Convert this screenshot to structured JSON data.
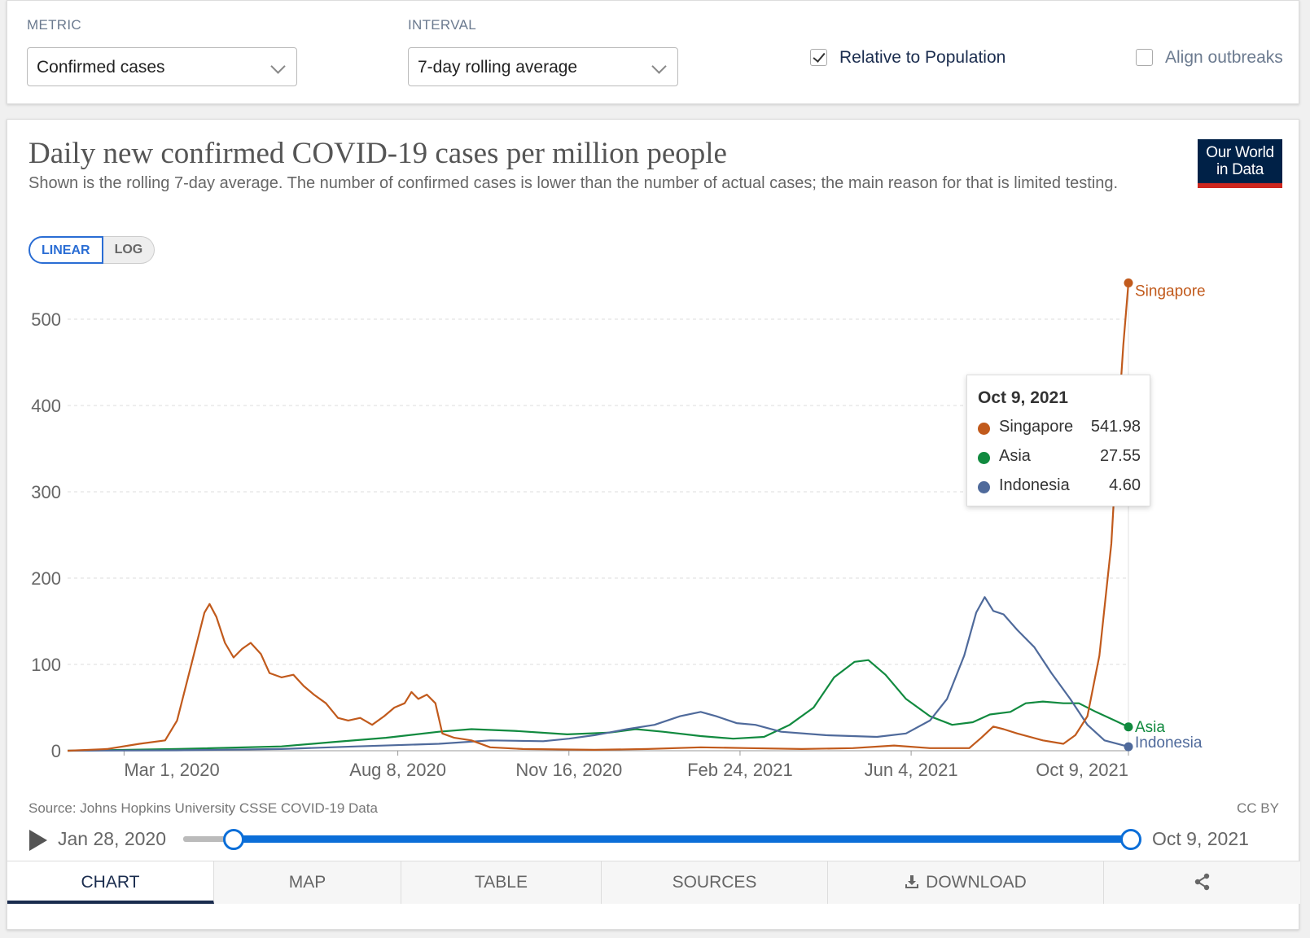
{
  "controls": {
    "metric_label": "METRIC",
    "metric_value": "Confirmed cases",
    "interval_label": "INTERVAL",
    "interval_value": "7-day rolling average",
    "relative_label": "Relative to Population",
    "relative_checked": true,
    "align_label": "Align outbreaks",
    "align_checked": false
  },
  "logo": {
    "line1": "Our World",
    "line2": "in Data"
  },
  "scale": {
    "linear": "LINEAR",
    "log": "LOG",
    "selected": "LINEAR"
  },
  "tooltip": {
    "date": "Oct 9, 2021",
    "rows": [
      {
        "name": "Singapore",
        "value": "541.98",
        "color": "#c15a1c"
      },
      {
        "name": "Asia",
        "value": "27.55",
        "color": "#118a3f"
      },
      {
        "name": "Indonesia",
        "value": "4.60",
        "color": "#4f6a9b"
      }
    ]
  },
  "footer": {
    "source": "Source: Johns Hopkins University CSSE COVID-19 Data",
    "license": "CC BY"
  },
  "timeline": {
    "start": "Jan 28, 2020",
    "end": "Oct 9, 2021"
  },
  "tabs": [
    {
      "label": "CHART",
      "active": true
    },
    {
      "label": "MAP",
      "active": false
    },
    {
      "label": "TABLE",
      "active": false
    },
    {
      "label": "SOURCES",
      "active": false
    },
    {
      "label": "DOWNLOAD",
      "active": false
    }
  ],
  "icons": {
    "play": "play-icon",
    "download": "download-icon",
    "share": "share-icon",
    "chevron": "chevron-down-icon",
    "check": "checkmark-icon"
  },
  "chart_data": {
    "type": "line",
    "title": "Daily new confirmed COVID-19 cases per million people",
    "subtitle": "Shown is the rolling 7-day average. The number of confirmed cases is lower than the number of actual cases; the main reason for that is limited testing.",
    "xlabel": "",
    "ylabel": "",
    "x_range": [
      "2020-01-28",
      "2021-10-09"
    ],
    "ylim": [
      0,
      540
    ],
    "y_ticks": [
      0,
      100,
      200,
      300,
      400,
      500
    ],
    "x_ticks": [
      "Mar 1, 2020",
      "Aug 8, 2020",
      "Nov 16, 2020",
      "Feb 24, 2021",
      "Jun 4, 2021",
      "Oct 9, 2021"
    ],
    "x_tick_dates": [
      "2020-03-01",
      "2020-08-08",
      "2020-11-16",
      "2021-02-24",
      "2021-06-04",
      "2021-10-09"
    ],
    "grid": "horizontal",
    "legend": "end-labels",
    "series": [
      {
        "name": "Singapore",
        "color": "#c15a1c",
        "points": [
          [
            "2020-01-28",
            0
          ],
          [
            "2020-02-20",
            2
          ],
          [
            "2020-03-10",
            8
          ],
          [
            "2020-03-25",
            12
          ],
          [
            "2020-04-01",
            35
          ],
          [
            "2020-04-10",
            105
          ],
          [
            "2020-04-17",
            160
          ],
          [
            "2020-04-20",
            170
          ],
          [
            "2020-04-24",
            155
          ],
          [
            "2020-04-29",
            125
          ],
          [
            "2020-05-04",
            108
          ],
          [
            "2020-05-09",
            118
          ],
          [
            "2020-05-14",
            125
          ],
          [
            "2020-05-20",
            112
          ],
          [
            "2020-05-25",
            90
          ],
          [
            "2020-06-01",
            85
          ],
          [
            "2020-06-08",
            88
          ],
          [
            "2020-06-14",
            75
          ],
          [
            "2020-06-20",
            65
          ],
          [
            "2020-06-27",
            55
          ],
          [
            "2020-07-04",
            38
          ],
          [
            "2020-07-10",
            35
          ],
          [
            "2020-07-17",
            38
          ],
          [
            "2020-07-24",
            30
          ],
          [
            "2020-07-31",
            40
          ],
          [
            "2020-08-06",
            50
          ],
          [
            "2020-08-12",
            55
          ],
          [
            "2020-08-16",
            68
          ],
          [
            "2020-08-20",
            60
          ],
          [
            "2020-08-25",
            65
          ],
          [
            "2020-08-30",
            55
          ],
          [
            "2020-09-03",
            20
          ],
          [
            "2020-09-10",
            15
          ],
          [
            "2020-09-20",
            12
          ],
          [
            "2020-10-01",
            4
          ],
          [
            "2020-10-20",
            2
          ],
          [
            "2020-12-01",
            1
          ],
          [
            "2021-01-01",
            2
          ],
          [
            "2021-02-01",
            4
          ],
          [
            "2021-03-01",
            3
          ],
          [
            "2021-04-01",
            2
          ],
          [
            "2021-05-01",
            3
          ],
          [
            "2021-05-25",
            6
          ],
          [
            "2021-06-15",
            3
          ],
          [
            "2021-07-08",
            3
          ],
          [
            "2021-07-15",
            15
          ],
          [
            "2021-07-22",
            28
          ],
          [
            "2021-07-28",
            25
          ],
          [
            "2021-08-05",
            20
          ],
          [
            "2021-08-20",
            12
          ],
          [
            "2021-09-01",
            8
          ],
          [
            "2021-09-08",
            18
          ],
          [
            "2021-09-15",
            40
          ],
          [
            "2021-09-22",
            110
          ],
          [
            "2021-09-29",
            240
          ],
          [
            "2021-10-03",
            380
          ],
          [
            "2021-10-06",
            470
          ],
          [
            "2021-10-09",
            541.98
          ]
        ]
      },
      {
        "name": "Asia",
        "color": "#118a3f",
        "points": [
          [
            "2020-01-28",
            0
          ],
          [
            "2020-04-01",
            2
          ],
          [
            "2020-06-01",
            5
          ],
          [
            "2020-07-01",
            10
          ],
          [
            "2020-08-01",
            15
          ],
          [
            "2020-09-01",
            22
          ],
          [
            "2020-09-20",
            25
          ],
          [
            "2020-10-15",
            23
          ],
          [
            "2020-11-15",
            19
          ],
          [
            "2020-12-10",
            21
          ],
          [
            "2020-12-25",
            25
          ],
          [
            "2021-01-10",
            22
          ],
          [
            "2021-02-01",
            17
          ],
          [
            "2021-02-20",
            14
          ],
          [
            "2021-03-10",
            16
          ],
          [
            "2021-03-25",
            30
          ],
          [
            "2021-04-08",
            50
          ],
          [
            "2021-04-20",
            85
          ],
          [
            "2021-05-02",
            103
          ],
          [
            "2021-05-10",
            105
          ],
          [
            "2021-05-20",
            88
          ],
          [
            "2021-06-01",
            60
          ],
          [
            "2021-06-15",
            40
          ],
          [
            "2021-06-28",
            30
          ],
          [
            "2021-07-10",
            33
          ],
          [
            "2021-07-20",
            42
          ],
          [
            "2021-08-01",
            45
          ],
          [
            "2021-08-10",
            55
          ],
          [
            "2021-08-20",
            57
          ],
          [
            "2021-09-01",
            55
          ],
          [
            "2021-09-10",
            55
          ],
          [
            "2021-09-20",
            45
          ],
          [
            "2021-10-01",
            35
          ],
          [
            "2021-10-09",
            27.55
          ]
        ]
      },
      {
        "name": "Indonesia",
        "color": "#4f6a9b",
        "points": [
          [
            "2020-01-28",
            0
          ],
          [
            "2020-04-01",
            0.5
          ],
          [
            "2020-06-01",
            2
          ],
          [
            "2020-07-15",
            5
          ],
          [
            "2020-09-01",
            8
          ],
          [
            "2020-10-01",
            12
          ],
          [
            "2020-11-01",
            11
          ],
          [
            "2020-11-16",
            14
          ],
          [
            "2020-12-01",
            18
          ],
          [
            "2020-12-20",
            25
          ],
          [
            "2021-01-05",
            30
          ],
          [
            "2021-01-20",
            40
          ],
          [
            "2021-02-01",
            45
          ],
          [
            "2021-02-10",
            40
          ],
          [
            "2021-02-22",
            32
          ],
          [
            "2021-03-05",
            30
          ],
          [
            "2021-03-20",
            22
          ],
          [
            "2021-04-15",
            18
          ],
          [
            "2021-05-15",
            16
          ],
          [
            "2021-06-01",
            20
          ],
          [
            "2021-06-15",
            35
          ],
          [
            "2021-06-25",
            60
          ],
          [
            "2021-07-05",
            110
          ],
          [
            "2021-07-12",
            160
          ],
          [
            "2021-07-17",
            178
          ],
          [
            "2021-07-22",
            162
          ],
          [
            "2021-07-28",
            158
          ],
          [
            "2021-08-05",
            140
          ],
          [
            "2021-08-15",
            120
          ],
          [
            "2021-08-25",
            90
          ],
          [
            "2021-09-05",
            60
          ],
          [
            "2021-09-15",
            30
          ],
          [
            "2021-09-25",
            12
          ],
          [
            "2021-10-09",
            4.6
          ]
        ]
      }
    ]
  }
}
